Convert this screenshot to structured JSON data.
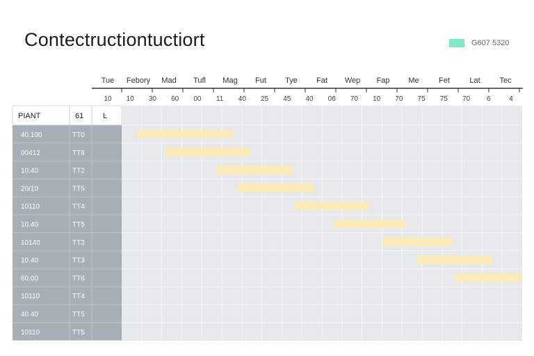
{
  "title": "Contectructiontuctiort",
  "legend": {
    "label": "G607 5320",
    "color": "#7ee8c8"
  },
  "columns": {
    "plant": "PIANT",
    "code": "61",
    "flag": "Ŀ"
  },
  "chart_data": {
    "type": "bar",
    "orientation": "gantt",
    "timeline_headers": [
      "Tue",
      "Febory",
      "Mad",
      "Tufl",
      "Mag",
      "Fut",
      "Tye",
      "Fat",
      "Wep",
      "Fap",
      "Me",
      "Fet",
      "Lat",
      "Tec"
    ],
    "timeline_subheaders": [
      "10",
      "10",
      "30",
      "60",
      "00",
      "11",
      "40",
      "25",
      "45",
      "40",
      "06",
      "70",
      "10",
      "70",
      "75",
      "75",
      "70",
      "6",
      "4"
    ],
    "rows": [
      {
        "label": "40.100",
        "code": "TT0",
        "start": 0.04,
        "end": 0.279
      },
      {
        "label": "00412",
        "code": "TT8",
        "start": 0.11,
        "end": 0.323
      },
      {
        "label": "10.40",
        "code": "TT2",
        "start": 0.237,
        "end": 0.429
      },
      {
        "label": "20/10",
        "code": "TT5",
        "start": 0.29,
        "end": 0.482
      },
      {
        "label": "10110",
        "code": "TT4",
        "start": 0.432,
        "end": 0.62
      },
      {
        "label": "10.40",
        "code": "TT5",
        "start": 0.531,
        "end": 0.711
      },
      {
        "label": "10140",
        "code": "TT3",
        "start": 0.652,
        "end": 0.826
      },
      {
        "label": "10.40",
        "code": "TT3",
        "start": 0.74,
        "end": 0.927
      },
      {
        "label": "60.00",
        "code": "TT6",
        "start": 0.833,
        "end": 1.0
      },
      {
        "label": "10110",
        "code": "TT4",
        "start": null,
        "end": null
      },
      {
        "label": "40.40",
        "code": "TT5",
        "start": null,
        "end": null
      },
      {
        "label": "10110",
        "code": "TT5",
        "start": null,
        "end": null
      }
    ],
    "bar_color": "#fcebb6"
  }
}
